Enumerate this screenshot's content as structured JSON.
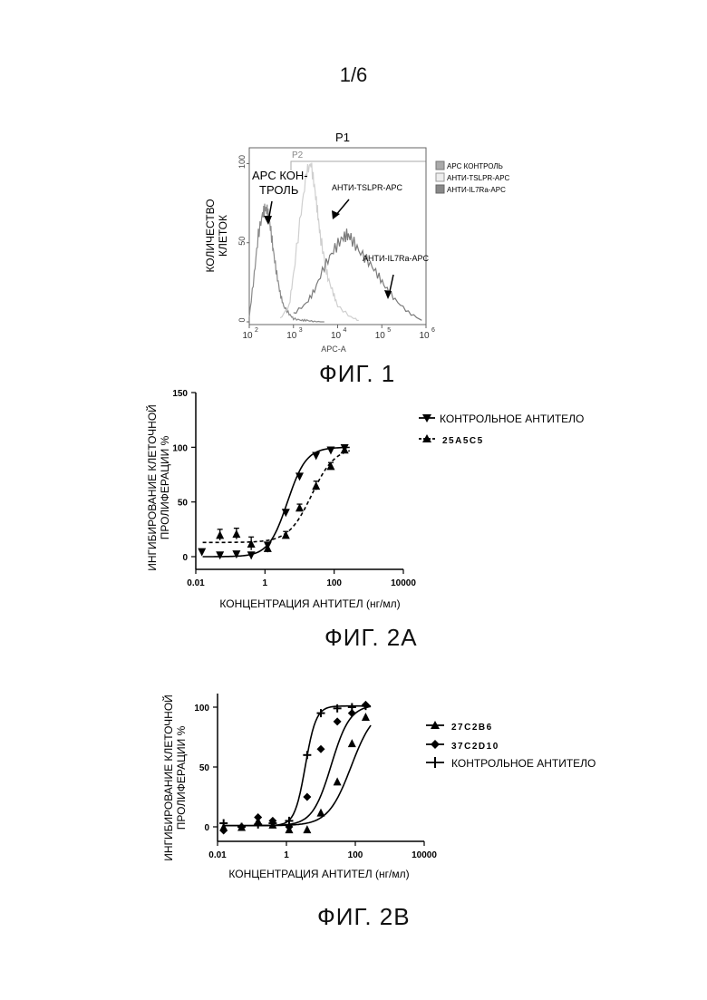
{
  "page_number": "1/6",
  "figures": {
    "fig1": {
      "caption": "ФИГ. 1",
      "gate_label": "P1",
      "gate2_label": "P2",
      "ylabel_lines": [
        "КОЛИЧЕСТВО",
        "КЛЕТОК"
      ],
      "xlabel": "APC-A",
      "yticks": [
        "0",
        "50",
        "100"
      ],
      "xticks": [
        {
          "base": "10",
          "exp": "2"
        },
        {
          "base": "10",
          "exp": "3"
        },
        {
          "base": "10",
          "exp": "4"
        },
        {
          "base": "10",
          "exp": "5"
        },
        {
          "base": "10",
          "exp": "6"
        }
      ],
      "annotations": {
        "apc_control_lines": [
          "APC КОН-",
          "ТРОЛЬ"
        ],
        "tslpr": "АНТИ-TSLPR-APC",
        "il7ra": "АНТИ-IL7Ra-APC"
      },
      "legend": [
        "APC КОНТРОЛЬ",
        "АНТИ-TSLPR-APC",
        "АНТИ-IL7Ra-APC"
      ],
      "colors": {
        "control": "#8a8a8a",
        "tslpr": "#cfcfcf",
        "il7ra": "#7a7a7a"
      }
    },
    "fig2a": {
      "caption": "ФИГ. 2A",
      "ylabel_lines": [
        "ИНГИБИРОВАНИЕ КЛЕТОЧНОЙ",
        "ПРОЛИФЕРАЦИИ %"
      ],
      "xlabel": "КОНЦЕНТРАЦИЯ АНТИТЕЛ (нг/мл)",
      "yticks": [
        "0",
        "50",
        "100",
        "150"
      ],
      "xticks": [
        "0.01",
        "1",
        "100",
        "10000"
      ],
      "legend": [
        "КОНТРОЛЬНОЕ АНТИТЕЛО",
        "25A5C5"
      ]
    },
    "fig2b": {
      "caption": "ФИГ. 2B",
      "ylabel_lines": [
        "ИНГИБИРОВАНИЕ КЛЕТОЧНОЙ",
        "ПРОЛИФЕРАЦИИ %"
      ],
      "xlabel": "КОНЦЕНТРАЦИЯ АНТИТЕЛ (нг/мл)",
      "yticks": [
        "0",
        "50",
        "100"
      ],
      "xticks": [
        "0.01",
        "1",
        "100",
        "10000"
      ],
      "legend": [
        "27C2B6",
        "37C2D10",
        "КОНТРОЛЬНОЕ АНТИТЕЛО"
      ]
    }
  },
  "chart_data": [
    {
      "type": "area",
      "xscale": "log",
      "xlim": [
        100,
        1000000
      ],
      "ylim": [
        0,
        110
      ],
      "series": [
        {
          "name": "APC КОНТРОЛЬ",
          "x": [
            100,
            130,
            160,
            200,
            230,
            260,
            300,
            350,
            420,
            500,
            600,
            800,
            1000,
            1500,
            2000,
            3000,
            5000
          ],
          "y": [
            3,
            30,
            55,
            68,
            72,
            70,
            60,
            45,
            30,
            18,
            10,
            5,
            2,
            1,
            1,
            0,
            0
          ]
        },
        {
          "name": "АНТИ-TSLPR-APC",
          "x": [
            500,
            800,
            1000,
            1500,
            2000,
            2500,
            3000,
            3500,
            4000,
            5000,
            6000,
            8000,
            10000,
            20000,
            30000
          ],
          "y": [
            2,
            10,
            30,
            70,
            95,
            100,
            85,
            70,
            55,
            40,
            28,
            18,
            10,
            3,
            1
          ]
        },
        {
          "name": "АНТИ-IL7Ra-APC",
          "x": [
            1000,
            2000,
            3000,
            5000,
            8000,
            12000,
            16000,
            20000,
            30000,
            50000,
            80000,
            120000,
            200000,
            400000,
            800000
          ],
          "y": [
            5,
            12,
            20,
            35,
            45,
            52,
            55,
            53,
            45,
            38,
            30,
            22,
            14,
            6,
            1
          ]
        }
      ]
    },
    {
      "type": "scatter",
      "xscale": "log",
      "xlim": [
        0.01,
        10000
      ],
      "ylim": [
        -10,
        150
      ],
      "series": [
        {
          "name": "КОНТРОЛЬНОЕ АНТИТЕЛО",
          "marker": "triangle-down",
          "line": "solid",
          "x": [
            0.015,
            0.05,
            0.15,
            0.4,
            1.2,
            4,
            10,
            30,
            80,
            200
          ],
          "y": [
            4,
            1,
            2,
            1,
            10,
            40,
            73,
            92,
            97,
            99
          ],
          "err": [
            2,
            2,
            2,
            3,
            3,
            2,
            2,
            2,
            2,
            2
          ]
        },
        {
          "name": "25A5C5",
          "marker": "triangle-up",
          "line": "dashed",
          "x": [
            0.05,
            0.15,
            0.4,
            1.2,
            4,
            10,
            30,
            80,
            200
          ],
          "y": [
            20,
            21,
            12,
            8,
            20,
            45,
            65,
            83,
            98
          ],
          "err": [
            5,
            5,
            6,
            4,
            3,
            3,
            4,
            3,
            2
          ]
        }
      ]
    },
    {
      "type": "scatter",
      "xscale": "log",
      "xlim": [
        0.01,
        10000
      ],
      "ylim": [
        -10,
        105
      ],
      "series": [
        {
          "name": "27C2B6",
          "marker": "triangle-up",
          "x": [
            0.015,
            0.05,
            0.15,
            0.4,
            1.2,
            4,
            10,
            30,
            80,
            200
          ],
          "y": [
            0,
            0,
            5,
            2,
            -2,
            -2,
            12,
            38,
            70,
            92
          ]
        },
        {
          "name": "37C2D10",
          "marker": "diamond",
          "x": [
            0.015,
            0.05,
            0.15,
            0.4,
            1.2,
            4,
            10,
            30,
            80,
            200
          ],
          "y": [
            -3,
            0,
            8,
            5,
            0,
            25,
            65,
            88,
            95,
            102
          ]
        },
        {
          "name": "КОНТРОЛЬНОЕ АНТИТЕЛО",
          "marker": "plus",
          "x": [
            0.015,
            0.05,
            0.15,
            0.4,
            1.2,
            4,
            10,
            30,
            80,
            200
          ],
          "y": [
            3,
            0,
            2,
            3,
            5,
            60,
            95,
            99,
            100,
            101
          ]
        }
      ]
    }
  ]
}
